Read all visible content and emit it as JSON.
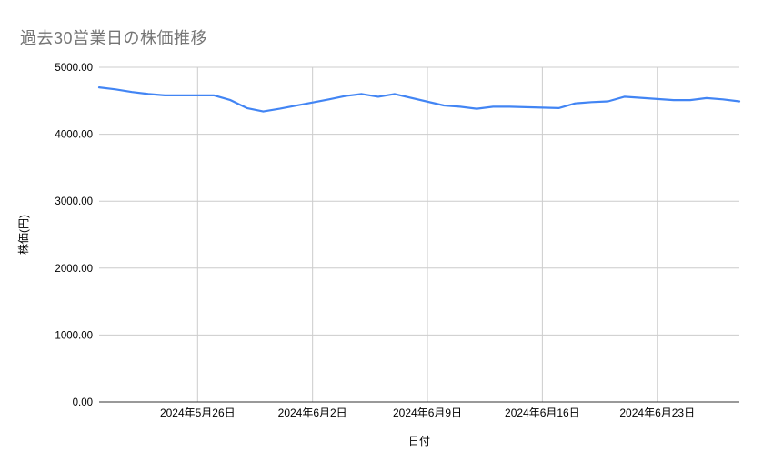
{
  "chart": {
    "title": "過去30営業日の株価推移",
    "colors": {
      "line": "#4285f4",
      "gridline": "#cccccc",
      "baseline": "#333333",
      "title_text": "#757575",
      "tick_text": "#000000"
    }
  },
  "chart_data": {
    "type": "line",
    "title": "過去30営業日の株価推移",
    "xlabel": "日付",
    "ylabel": "株価(円)",
    "ylim": [
      0,
      5000
    ],
    "x_range": [
      "2024-05-20",
      "2024-06-28"
    ],
    "grid": true,
    "legend": "none",
    "y_ticks": [
      {
        "value": 0,
        "label": "0.00"
      },
      {
        "value": 1000,
        "label": "1000.00"
      },
      {
        "value": 2000,
        "label": "2000.00"
      },
      {
        "value": 3000,
        "label": "3000.00"
      },
      {
        "value": 4000,
        "label": "4000.00"
      },
      {
        "value": 5000,
        "label": "5000.00"
      }
    ],
    "x_ticks": [
      {
        "date": "2024-05-26",
        "label": "2024年5月26日"
      },
      {
        "date": "2024-06-02",
        "label": "2024年6月2日"
      },
      {
        "date": "2024-06-09",
        "label": "2024年6月9日"
      },
      {
        "date": "2024-06-16",
        "label": "2024年6月16日"
      },
      {
        "date": "2024-06-23",
        "label": "2024年6月23日"
      }
    ],
    "series": [
      {
        "points": [
          {
            "date": "2024-05-20",
            "value": 4700
          },
          {
            "date": "2024-05-21",
            "value": 4670
          },
          {
            "date": "2024-05-22",
            "value": 4630
          },
          {
            "date": "2024-05-23",
            "value": 4600
          },
          {
            "date": "2024-05-24",
            "value": 4580
          },
          {
            "date": "2024-05-27",
            "value": 4580
          },
          {
            "date": "2024-05-28",
            "value": 4510
          },
          {
            "date": "2024-05-29",
            "value": 4390
          },
          {
            "date": "2024-05-30",
            "value": 4340
          },
          {
            "date": "2024-05-31",
            "value": 4380
          },
          {
            "date": "2024-06-03",
            "value": 4520
          },
          {
            "date": "2024-06-04",
            "value": 4570
          },
          {
            "date": "2024-06-05",
            "value": 4600
          },
          {
            "date": "2024-06-06",
            "value": 4560
          },
          {
            "date": "2024-06-07",
            "value": 4600
          },
          {
            "date": "2024-06-10",
            "value": 4430
          },
          {
            "date": "2024-06-11",
            "value": 4410
          },
          {
            "date": "2024-06-12",
            "value": 4380
          },
          {
            "date": "2024-06-13",
            "value": 4410
          },
          {
            "date": "2024-06-14",
            "value": 4410
          },
          {
            "date": "2024-06-17",
            "value": 4390
          },
          {
            "date": "2024-06-18",
            "value": 4460
          },
          {
            "date": "2024-06-19",
            "value": 4480
          },
          {
            "date": "2024-06-20",
            "value": 4490
          },
          {
            "date": "2024-06-21",
            "value": 4560
          },
          {
            "date": "2024-06-24",
            "value": 4510
          },
          {
            "date": "2024-06-25",
            "value": 4510
          },
          {
            "date": "2024-06-26",
            "value": 4540
          },
          {
            "date": "2024-06-27",
            "value": 4520
          },
          {
            "date": "2024-06-28",
            "value": 4490
          }
        ]
      }
    ]
  }
}
